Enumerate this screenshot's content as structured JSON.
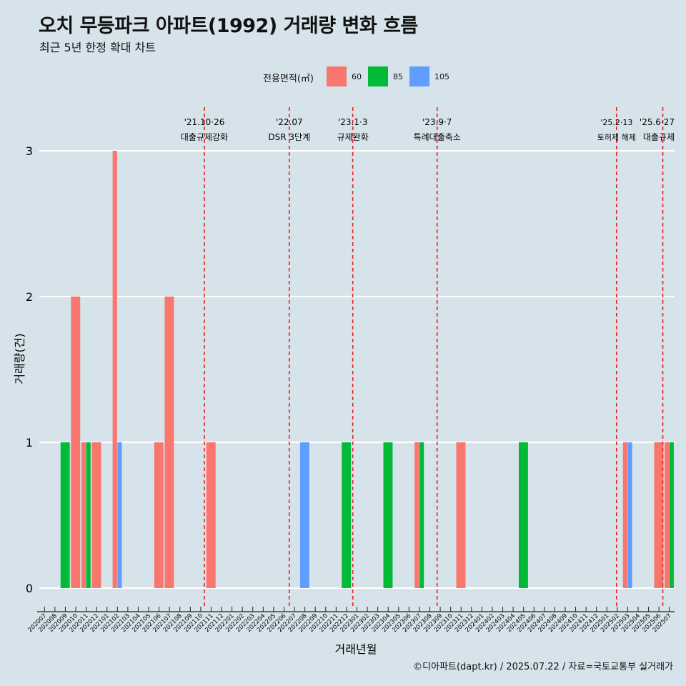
{
  "title": "오치 무등파크 아파트(1992) 거래량 변화 흐름",
  "subtitle": "최근 5년 한정 확대 차트",
  "caption": "©디아파트(dapt.kr) / 2025.07.22 / 자료=국토교통부 실거래가",
  "legend": {
    "title": "전용면적(㎡)",
    "items": [
      {
        "label": "60",
        "color": "#f8766d"
      },
      {
        "label": "85",
        "color": "#00ba38"
      },
      {
        "label": "105",
        "color": "#619cff"
      }
    ]
  },
  "chart_data": {
    "type": "bar",
    "xlabel": "거래년월",
    "ylabel": "거래량(건)",
    "ylim": [
      0,
      3
    ],
    "yticks": [
      0,
      1,
      2,
      3
    ],
    "grid": true,
    "legend_position": "top",
    "categories": [
      "202007",
      "202008",
      "202009",
      "202010",
      "202011",
      "202012",
      "202101",
      "202102",
      "202103",
      "202104",
      "202105",
      "202106",
      "202107",
      "202108",
      "202109",
      "202110",
      "202111",
      "202112",
      "202201",
      "202202",
      "202203",
      "202204",
      "202205",
      "202206",
      "202207",
      "202208",
      "202209",
      "202210",
      "202211",
      "202212",
      "202301",
      "202302",
      "202303",
      "202304",
      "202305",
      "202306",
      "202307",
      "202308",
      "202309",
      "202310",
      "202311",
      "202312",
      "202401",
      "202402",
      "202403",
      "202404",
      "202405",
      "202406",
      "202407",
      "202408",
      "202409",
      "202410",
      "202411",
      "202412",
      "202501",
      "202502",
      "202503",
      "202504",
      "202505",
      "202506",
      "202507"
    ],
    "series": [
      {
        "name": "60",
        "color": "#f8766d",
        "points": [
          {
            "x": "202010",
            "y": 2
          },
          {
            "x": "202011",
            "y": 1
          },
          {
            "x": "202012",
            "y": 1
          },
          {
            "x": "202102",
            "y": 3
          },
          {
            "x": "202106",
            "y": 1
          },
          {
            "x": "202107",
            "y": 2
          },
          {
            "x": "202111",
            "y": 1
          },
          {
            "x": "202307",
            "y": 1
          },
          {
            "x": "202311",
            "y": 1
          },
          {
            "x": "202503",
            "y": 1
          },
          {
            "x": "202506",
            "y": 1
          },
          {
            "x": "202507",
            "y": 1
          }
        ]
      },
      {
        "name": "85",
        "color": "#00ba38",
        "points": [
          {
            "x": "202009",
            "y": 1
          },
          {
            "x": "202011",
            "y": 1
          },
          {
            "x": "202212",
            "y": 1
          },
          {
            "x": "202304",
            "y": 1
          },
          {
            "x": "202307",
            "y": 1
          },
          {
            "x": "202405",
            "y": 1
          },
          {
            "x": "202507",
            "y": 1
          }
        ]
      },
      {
        "name": "105",
        "color": "#619cff",
        "points": [
          {
            "x": "202102",
            "y": 1
          },
          {
            "x": "202208",
            "y": 1
          },
          {
            "x": "202503",
            "y": 1
          }
        ]
      }
    ],
    "events": [
      {
        "month": "202110",
        "fraction": 0.85,
        "date": "'21.10·26",
        "label": "대출규제강화"
      },
      {
        "month": "202207",
        "fraction": 0.0,
        "date": "'22.07",
        "label": "DSR 3단계"
      },
      {
        "month": "202301",
        "fraction": 0.1,
        "date": "'23.1·3",
        "label": "규제완화"
      },
      {
        "month": "202309",
        "fraction": 0.2,
        "date": "'23.9·7",
        "label": "특례대출축소"
      },
      {
        "month": "202502",
        "fraction": 0.43,
        "date": "'25.2·13",
        "label": "토허제 해제"
      },
      {
        "month": "202506",
        "fraction": 0.87,
        "date": "'25.6·27",
        "label": "대출규제"
      }
    ]
  }
}
